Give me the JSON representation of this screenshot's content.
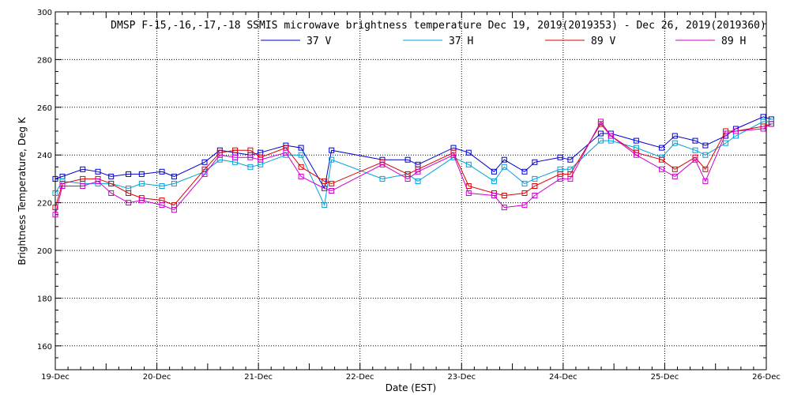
{
  "chart_data": {
    "type": "line",
    "title": "DMSP F-15,-16,-17,-18 SSMIS microwave brightness temperature Dec 19, 2019(2019353) - Dec 26, 2019(2019360)",
    "xlabel": "Date (EST)",
    "ylabel": "Brightness Temperature, Deg K",
    "xlim": [
      0,
      7
    ],
    "ylim": [
      150,
      300
    ],
    "x_tick_labels": [
      "19-Dec",
      "20-Dec",
      "21-Dec",
      "22-Dec",
      "23-Dec",
      "24-Dec",
      "25-Dec",
      "26-Dec"
    ],
    "y_ticks": [
      160,
      180,
      200,
      220,
      240,
      260,
      280,
      300
    ],
    "grid": true,
    "legend_position": "top-center",
    "series": [
      {
        "name": "37 V",
        "color": "#0000cc",
        "points": [
          [
            0.0,
            230
          ],
          [
            0.07,
            231
          ],
          [
            0.27,
            234
          ],
          [
            0.42,
            233
          ],
          [
            0.55,
            231
          ],
          [
            0.72,
            232
          ],
          [
            0.85,
            232
          ],
          [
            1.05,
            233
          ],
          [
            1.17,
            231
          ],
          [
            1.47,
            237
          ],
          [
            1.62,
            242
          ],
          [
            1.77,
            241
          ],
          [
            1.92,
            240
          ],
          [
            2.02,
            241
          ],
          [
            2.27,
            244
          ],
          [
            2.42,
            243
          ],
          [
            2.65,
            226
          ],
          [
            2.72,
            242
          ],
          [
            3.22,
            238
          ],
          [
            3.47,
            238
          ],
          [
            3.57,
            236
          ],
          [
            3.92,
            243
          ],
          [
            4.07,
            241
          ],
          [
            4.32,
            233
          ],
          [
            4.42,
            238
          ],
          [
            4.62,
            233
          ],
          [
            4.72,
            237
          ],
          [
            4.97,
            239
          ],
          [
            5.07,
            238
          ],
          [
            5.37,
            249
          ],
          [
            5.47,
            249
          ],
          [
            5.72,
            246
          ],
          [
            5.97,
            243
          ],
          [
            6.1,
            248
          ],
          [
            6.3,
            246
          ],
          [
            6.4,
            244
          ],
          [
            6.6,
            248
          ],
          [
            6.7,
            251
          ],
          [
            6.97,
            256
          ],
          [
            7.05,
            255
          ]
        ]
      },
      {
        "name": "37 H",
        "color": "#00a0dc",
        "points": [
          [
            0.0,
            224
          ],
          [
            0.07,
            229
          ],
          [
            0.27,
            228
          ],
          [
            0.42,
            228
          ],
          [
            0.55,
            228
          ],
          [
            0.72,
            226
          ],
          [
            0.85,
            228
          ],
          [
            1.05,
            227
          ],
          [
            1.17,
            228
          ],
          [
            1.47,
            233
          ],
          [
            1.62,
            238
          ],
          [
            1.77,
            237
          ],
          [
            1.92,
            235
          ],
          [
            2.02,
            236
          ],
          [
            2.27,
            240
          ],
          [
            2.42,
            240
          ],
          [
            2.65,
            219
          ],
          [
            2.72,
            238
          ],
          [
            3.22,
            230
          ],
          [
            3.47,
            232
          ],
          [
            3.57,
            229
          ],
          [
            3.92,
            239
          ],
          [
            4.07,
            236
          ],
          [
            4.32,
            229
          ],
          [
            4.42,
            235
          ],
          [
            4.62,
            228
          ],
          [
            4.72,
            230
          ],
          [
            4.97,
            234
          ],
          [
            5.07,
            234
          ],
          [
            5.37,
            246
          ],
          [
            5.47,
            246
          ],
          [
            5.72,
            243
          ],
          [
            5.97,
            239
          ],
          [
            6.1,
            245
          ],
          [
            6.3,
            242
          ],
          [
            6.4,
            240
          ],
          [
            6.6,
            245
          ],
          [
            6.7,
            248
          ],
          [
            6.97,
            254
          ],
          [
            7.05,
            254
          ]
        ]
      },
      {
        "name": "89 V",
        "color": "#dd0000",
        "points": [
          [
            0.0,
            218
          ],
          [
            0.07,
            228
          ],
          [
            0.27,
            230
          ],
          [
            0.42,
            230
          ],
          [
            0.55,
            228
          ],
          [
            0.72,
            224
          ],
          [
            0.85,
            222
          ],
          [
            1.05,
            221
          ],
          [
            1.17,
            219
          ],
          [
            1.47,
            234
          ],
          [
            1.62,
            241
          ],
          [
            1.77,
            242
          ],
          [
            1.92,
            242
          ],
          [
            2.02,
            239
          ],
          [
            2.27,
            243
          ],
          [
            2.42,
            235
          ],
          [
            2.65,
            229
          ],
          [
            2.72,
            228
          ],
          [
            3.22,
            237
          ],
          [
            3.47,
            232
          ],
          [
            3.57,
            234
          ],
          [
            3.92,
            241
          ],
          [
            4.07,
            227
          ],
          [
            4.32,
            224
          ],
          [
            4.42,
            223
          ],
          [
            4.62,
            224
          ],
          [
            4.72,
            227
          ],
          [
            4.97,
            232
          ],
          [
            5.07,
            232
          ],
          [
            5.37,
            253
          ],
          [
            5.47,
            248
          ],
          [
            5.72,
            241
          ],
          [
            5.97,
            238
          ],
          [
            6.1,
            234
          ],
          [
            6.3,
            239
          ],
          [
            6.4,
            234
          ],
          [
            6.6,
            250
          ],
          [
            6.7,
            250
          ],
          [
            6.97,
            252
          ],
          [
            7.05,
            253
          ]
        ]
      },
      {
        "name": "89 H",
        "color": "#cc00cc",
        "points": [
          [
            0.0,
            215
          ],
          [
            0.07,
            227
          ],
          [
            0.27,
            227
          ],
          [
            0.42,
            229
          ],
          [
            0.55,
            224
          ],
          [
            0.72,
            220
          ],
          [
            0.85,
            221
          ],
          [
            1.05,
            219
          ],
          [
            1.17,
            217
          ],
          [
            1.47,
            232
          ],
          [
            1.62,
            240
          ],
          [
            1.77,
            239
          ],
          [
            1.92,
            239
          ],
          [
            2.02,
            238
          ],
          [
            2.27,
            241
          ],
          [
            2.42,
            231
          ],
          [
            2.65,
            226
          ],
          [
            2.72,
            225
          ],
          [
            3.22,
            236
          ],
          [
            3.47,
            230
          ],
          [
            3.57,
            233
          ],
          [
            3.92,
            240
          ],
          [
            4.07,
            224
          ],
          [
            4.32,
            223
          ],
          [
            4.42,
            218
          ],
          [
            4.62,
            219
          ],
          [
            4.72,
            223
          ],
          [
            4.97,
            230
          ],
          [
            5.07,
            230
          ],
          [
            5.37,
            254
          ],
          [
            5.47,
            248
          ],
          [
            5.72,
            240
          ],
          [
            5.97,
            234
          ],
          [
            6.1,
            231
          ],
          [
            6.3,
            238
          ],
          [
            6.4,
            229
          ],
          [
            6.6,
            249
          ],
          [
            6.7,
            250
          ],
          [
            6.97,
            251
          ],
          [
            7.05,
            253
          ]
        ]
      }
    ]
  }
}
